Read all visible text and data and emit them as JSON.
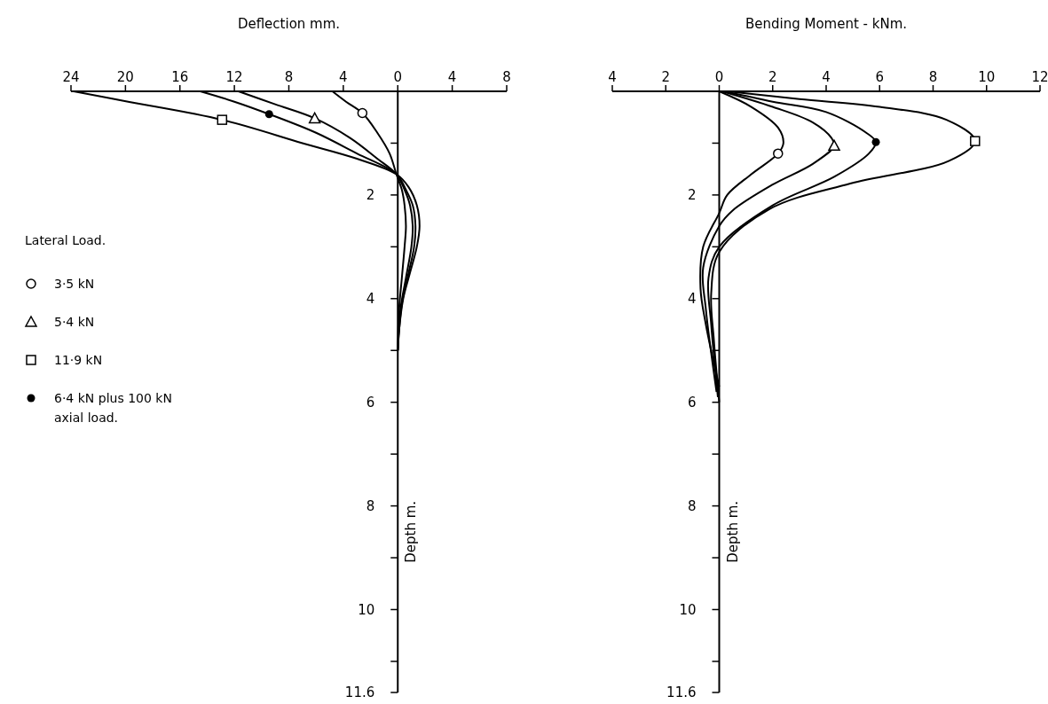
{
  "chart_data": [
    {
      "type": "line",
      "title": "Deflection   mm.",
      "ylabel": "Depth m.",
      "legend_title": "Lateral Load.",
      "legend": "left",
      "xlim": [
        24,
        -8
      ],
      "ylim": [
        11.6,
        0
      ],
      "xticks": [
        24,
        20,
        16,
        12,
        8,
        4,
        0,
        {
          "value": -4,
          "label": "4"
        },
        {
          "value": -8,
          "label": "8"
        }
      ],
      "yticks": [
        {
          "value": 1,
          "label": null
        },
        2,
        {
          "value": 3,
          "label": null
        },
        4,
        {
          "value": 5,
          "label": null
        },
        6,
        {
          "value": 7,
          "label": null
        },
        8,
        {
          "value": 9,
          "label": null
        },
        10,
        {
          "value": 11,
          "label": null
        },
        11.6
      ],
      "series": [
        {
          "type": "line",
          "color": "#000000",
          "x": [
            4.8,
            3.8,
            2.6,
            1.5,
            0.6,
            0.1,
            -0.3,
            -0.5,
            -0.6,
            -0.5,
            -0.3,
            -0.1,
            0
          ],
          "values": [
            0,
            0.2,
            0.42,
            0.8,
            1.2,
            1.6,
            1.9,
            2.2,
            2.6,
            3.0,
            3.6,
            4.2,
            5.0
          ]
        },
        {
          "type": "line",
          "color": "#000000",
          "x": [
            11.7,
            9,
            6.1,
            3.5,
            1.5,
            0.1,
            -0.5,
            -0.9,
            -1.1,
            -1.0,
            -0.6,
            -0.2,
            0
          ],
          "values": [
            0,
            0.25,
            0.52,
            0.9,
            1.3,
            1.6,
            1.9,
            2.2,
            2.6,
            3.0,
            3.6,
            4.2,
            5.0
          ]
        },
        {
          "type": "line",
          "color": "#000000",
          "x": [
            23.8,
            19.8,
            12.9,
            7,
            3,
            0.1,
            -0.8,
            -1.4,
            -1.6,
            -1.4,
            -0.9,
            -0.4,
            -0.1,
            0
          ],
          "values": [
            0,
            0.2,
            0.55,
            1.0,
            1.3,
            1.6,
            1.85,
            2.2,
            2.6,
            3.0,
            3.5,
            4.0,
            4.6,
            5.0
          ]
        },
        {
          "type": "line",
          "color": "#000000",
          "x": [
            14.5,
            12,
            9.45,
            6,
            3,
            0.1,
            -0.6,
            -1.1,
            -1.3,
            -1.2,
            -0.8,
            -0.3,
            0
          ],
          "values": [
            0,
            0.2,
            0.44,
            0.8,
            1.2,
            1.6,
            1.9,
            2.2,
            2.6,
            3.0,
            3.5,
            4.1,
            5.0
          ]
        },
        {
          "type": "scatter",
          "name": "3·5 kN",
          "marker": "circle",
          "color": "#000000",
          "x": [
            2.6
          ],
          "values": [
            0.42
          ]
        },
        {
          "type": "scatter",
          "name": "5·4 kN",
          "marker": "triangle",
          "color": "#000000",
          "x": [
            6.1
          ],
          "values": [
            0.52
          ]
        },
        {
          "type": "scatter",
          "name": "11·9 kN",
          "marker": "square",
          "color": "#000000",
          "x": [
            12.9
          ],
          "values": [
            0.55
          ]
        },
        {
          "type": "scatter",
          "name": "6·4 kN plus 100 kN axial load.",
          "marker": "dot",
          "color": "#000000",
          "x": [
            9.45
          ],
          "values": [
            0.44
          ]
        }
      ]
    },
    {
      "type": "line",
      "title": "Bending Moment - kNm.",
      "ylabel": "Depth m.",
      "xlim": [
        -4,
        12
      ],
      "ylim": [
        11.6,
        0
      ],
      "xticks": [
        {
          "value": -4,
          "label": "4"
        },
        {
          "value": -2,
          "label": "2"
        },
        0,
        2,
        4,
        6,
        8,
        10,
        12
      ],
      "yticks": [
        {
          "value": 1,
          "label": null
        },
        2,
        {
          "value": 3,
          "label": null
        },
        4,
        {
          "value": 5,
          "label": null
        },
        6,
        {
          "value": 7,
          "label": null
        },
        8,
        {
          "value": 9,
          "label": null
        },
        10,
        {
          "value": 11,
          "label": null
        },
        11.6
      ],
      "series": [
        {
          "type": "line",
          "color": "#000000",
          "x": [
            0,
            1.2,
            2.2,
            2.4,
            2.2,
            1.2,
            0.3,
            0,
            -0.6,
            -0.7,
            -0.5,
            0
          ],
          "values": [
            0,
            0.3,
            0.7,
            1.0,
            1.2,
            1.6,
            2.0,
            2.35,
            3.0,
            3.8,
            4.5,
            5.7
          ]
        },
        {
          "type": "line",
          "color": "#000000",
          "x": [
            0.1,
            2,
            3.5,
            4.2,
            4.3,
            3.5,
            2,
            0.5,
            0,
            -0.6,
            -0.5,
            -0.1
          ],
          "values": [
            0,
            0.3,
            0.6,
            0.9,
            1.05,
            1.4,
            1.8,
            2.3,
            2.6,
            3.4,
            4.2,
            5.8
          ]
        },
        {
          "type": "line",
          "color": "#000000",
          "x": [
            0.3,
            3,
            6,
            8.5,
            9.57,
            8.6,
            4.9,
            1.85,
            0,
            -0.3,
            -0.2,
            0
          ],
          "values": [
            0,
            0.15,
            0.3,
            0.55,
            0.96,
            1.34,
            1.78,
            2.28,
            3.1,
            3.9,
            4.8,
            6.0
          ]
        },
        {
          "type": "line",
          "color": "#000000",
          "x": [
            0.2,
            2,
            4,
            5.5,
            5.86,
            5.6,
            4.3,
            2,
            0,
            -0.4,
            -0.3,
            -0.05
          ],
          "values": [
            0,
            0.2,
            0.4,
            0.8,
            0.98,
            1.2,
            1.65,
            2.2,
            3.0,
            3.6,
            4.5,
            5.9
          ]
        },
        {
          "type": "scatter",
          "marker": "circle",
          "color": "#000000",
          "x": [
            2.2
          ],
          "values": [
            1.2
          ]
        },
        {
          "type": "scatter",
          "marker": "triangle",
          "color": "#000000",
          "x": [
            4.3
          ],
          "values": [
            1.05
          ]
        },
        {
          "type": "scatter",
          "marker": "square",
          "color": "#000000",
          "x": [
            9.57
          ],
          "values": [
            0.96
          ]
        },
        {
          "type": "scatter",
          "marker": "dot",
          "color": "#000000",
          "x": [
            5.86
          ],
          "values": [
            0.98
          ]
        }
      ]
    }
  ]
}
